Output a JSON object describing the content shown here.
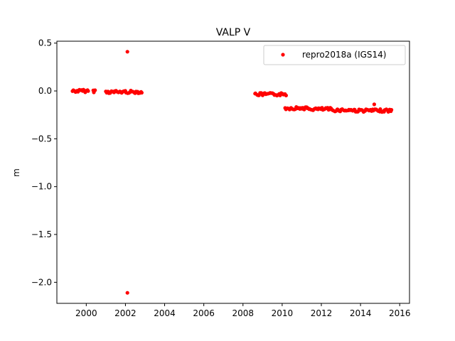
{
  "chart_data": {
    "type": "scatter",
    "title": "VALP V",
    "xlabel": "",
    "ylabel": "m",
    "xlim": [
      1998.5,
      2016.5
    ],
    "ylim": [
      -2.22,
      0.52
    ],
    "x_ticks": [
      2000,
      2002,
      2004,
      2006,
      2008,
      2010,
      2012,
      2014,
      2016
    ],
    "y_ticks": [
      0.5,
      0.0,
      -0.5,
      -1.0,
      -1.5,
      -2.0
    ],
    "y_tick_labels": [
      "0.5",
      "0.0",
      "−0.5",
      "−1.0",
      "−1.5",
      "−2.0"
    ],
    "grid": false,
    "legend": "top-right",
    "series": [
      {
        "name": "repro2018a (IGS14)",
        "color": "#ff0000",
        "segments": [
          {
            "x_start": 1999.3,
            "x_end": 2000.1,
            "y": 0.0
          },
          {
            "x_start": 2000.35,
            "x_end": 2000.45,
            "y": 0.0
          },
          {
            "x_start": 2001.0,
            "x_end": 2002.85,
            "y": -0.01
          },
          {
            "x_start": 2008.6,
            "x_end": 2010.2,
            "y": -0.035
          },
          {
            "x_start": 2010.15,
            "x_end": 2011.3,
            "y": -0.18
          },
          {
            "x_start": 2011.3,
            "x_end": 2012.5,
            "y": -0.19
          },
          {
            "x_start": 2012.5,
            "x_end": 2013.7,
            "y": -0.2
          },
          {
            "x_start": 2013.7,
            "x_end": 2015.6,
            "y": -0.205
          }
        ],
        "outliers": [
          {
            "x": 2002.1,
            "y": 0.41
          },
          {
            "x": 2002.1,
            "y": -2.11
          },
          {
            "x": 2014.7,
            "y": -0.14
          }
        ]
      }
    ]
  }
}
